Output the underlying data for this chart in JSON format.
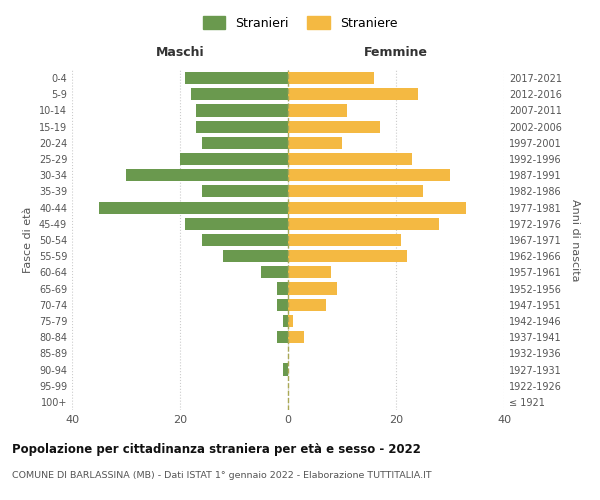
{
  "age_groups": [
    "100+",
    "95-99",
    "90-94",
    "85-89",
    "80-84",
    "75-79",
    "70-74",
    "65-69",
    "60-64",
    "55-59",
    "50-54",
    "45-49",
    "40-44",
    "35-39",
    "30-34",
    "25-29",
    "20-24",
    "15-19",
    "10-14",
    "5-9",
    "0-4"
  ],
  "birth_years": [
    "≤ 1921",
    "1922-1926",
    "1927-1931",
    "1932-1936",
    "1937-1941",
    "1942-1946",
    "1947-1951",
    "1952-1956",
    "1957-1961",
    "1962-1966",
    "1967-1971",
    "1972-1976",
    "1977-1981",
    "1982-1986",
    "1987-1991",
    "1992-1996",
    "1997-2001",
    "2002-2006",
    "2007-2011",
    "2012-2016",
    "2017-2021"
  ],
  "maschi": [
    0,
    0,
    1,
    0,
    2,
    1,
    2,
    2,
    5,
    12,
    16,
    19,
    35,
    16,
    30,
    20,
    16,
    17,
    17,
    18,
    19
  ],
  "femmine": [
    0,
    0,
    0,
    0,
    3,
    1,
    7,
    9,
    8,
    22,
    21,
    28,
    33,
    25,
    30,
    23,
    10,
    17,
    11,
    24,
    16
  ],
  "color_maschi": "#6a994e",
  "color_femmine": "#f4b942",
  "background_color": "#ffffff",
  "grid_color": "#cccccc",
  "title": "Popolazione per cittadinanza straniera per età e sesso - 2022",
  "subtitle": "COMUNE DI BARLASSINA (MB) - Dati ISTAT 1° gennaio 2022 - Elaborazione TUTTITALIA.IT",
  "xlabel_left": "Maschi",
  "xlabel_right": "Femmine",
  "ylabel_left": "Fasce di età",
  "ylabel_right": "Anni di nascita",
  "legend_maschi": "Stranieri",
  "legend_femmine": "Straniere",
  "xlim": 40,
  "dashed_line_color": "#aaa855"
}
